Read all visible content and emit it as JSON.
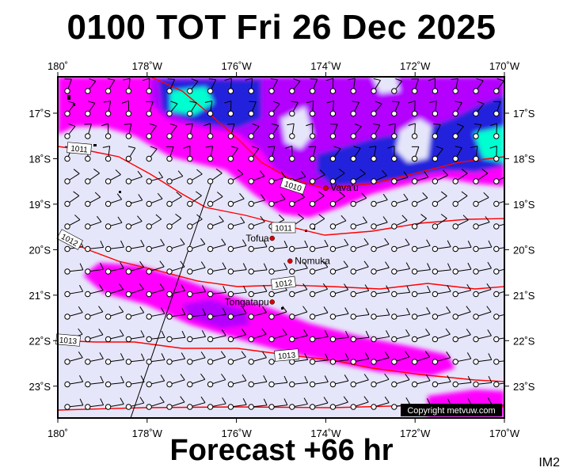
{
  "title": "0100 TOT Fri 26 Dec 2025",
  "footer": "Forecast +66 hr",
  "corner_tag": "IM2",
  "copyright": "Copyright metvuw.com",
  "map": {
    "lon_range": [
      180,
      190
    ],
    "lat_range": [
      -23.7,
      -16.2
    ],
    "top_lon_labels": [
      "180˚",
      "178˚W",
      "176˚W",
      "174˚W",
      "172˚W",
      "170˚W"
    ],
    "bottom_lon_labels": [
      "180˚",
      "178˚W",
      "176˚W",
      "174˚W",
      "172˚W",
      "170˚W"
    ],
    "lon_tick_values": [
      180,
      182,
      184,
      186,
      188,
      190
    ],
    "lat_labels": [
      "17˚S",
      "18˚S",
      "19˚S",
      "20˚S",
      "21˚S",
      "22˚S",
      "23˚S"
    ],
    "lat_tick_values": [
      -17,
      -18,
      -19,
      -20,
      -21,
      -22,
      -23
    ],
    "places": [
      {
        "name": "Vava'u",
        "lon": 186.0,
        "lat": -18.65
      },
      {
        "name": "Tofua",
        "lon": 184.8,
        "lat": -19.75
      },
      {
        "name": "Nomuka",
        "lon": 185.2,
        "lat": -20.25
      },
      {
        "name": "Tongatapu",
        "lon": 184.8,
        "lat": -21.15
      }
    ],
    "isobar_labels": [
      "1010",
      "1011",
      "1011",
      "1012",
      "1012",
      "1013",
      "1013"
    ],
    "colors": {
      "background": "#e6e6fa",
      "rain_magenta": "#ff00ff",
      "rain_purple": "#b400ff",
      "rain_blue": "#2020e0",
      "rain_cyan": "#00ffd0",
      "isobar": "#ff0000",
      "wind": "#000000"
    }
  }
}
